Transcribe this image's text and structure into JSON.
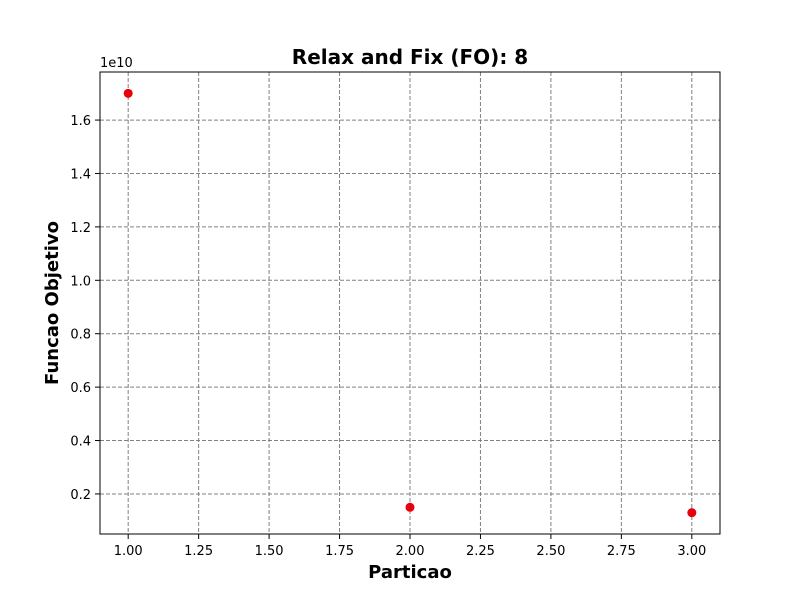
{
  "chart_data": {
    "type": "scatter",
    "title": "Relax and Fix (FO): 8",
    "xlabel": "Particao",
    "ylabel": "Funcao Objetivo",
    "y_offset_label": "1e10",
    "x": [
      1.0,
      2.0,
      3.0
    ],
    "y": [
      1.7,
      0.15,
      0.13
    ],
    "y_multiplier": 10000000000,
    "xlim": [
      0.9,
      3.1
    ],
    "ylim": [
      0.05,
      1.78
    ],
    "x_ticks": [
      1.0,
      1.25,
      1.5,
      1.75,
      2.0,
      2.25,
      2.5,
      2.75,
      3.0
    ],
    "x_tick_labels": [
      "1.00",
      "1.25",
      "1.50",
      "1.75",
      "2.00",
      "2.25",
      "2.50",
      "2.75",
      "3.00"
    ],
    "y_ticks": [
      0.2,
      0.4,
      0.6,
      0.8,
      1.0,
      1.2,
      1.4,
      1.6
    ],
    "y_tick_labels": [
      "0.2",
      "0.4",
      "0.6",
      "0.8",
      "1.0",
      "1.2",
      "1.4",
      "1.6"
    ],
    "grid": true,
    "grid_style": "dashed",
    "colors": {
      "points": "#e8000b",
      "grid": "#808080",
      "axes": "#000000"
    }
  }
}
